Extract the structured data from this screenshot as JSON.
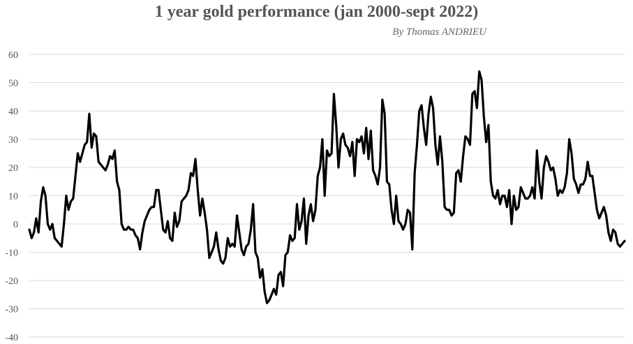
{
  "chart_data": {
    "type": "line",
    "title": "1 year gold performance (jan 2000-sept 2022)",
    "subtitle": "By Thomas ANDRIEU",
    "xlabel": "",
    "ylabel": "",
    "ylim": [
      -40,
      60
    ],
    "yticks": [
      60,
      50,
      40,
      30,
      20,
      10,
      0,
      -10,
      -20,
      -30,
      -40
    ],
    "grid": true,
    "line_color": "#000000",
    "grid_color": "#d9d9d9",
    "series": [
      {
        "values": [
          -2,
          -5,
          -3,
          2,
          -3,
          8,
          13,
          10,
          0,
          -2,
          0,
          -5,
          -6,
          -7,
          -8,
          0,
          10,
          5,
          8,
          9,
          17,
          25,
          22,
          25,
          28,
          29,
          39,
          27,
          32,
          31,
          22,
          21,
          20,
          19,
          21,
          24,
          23,
          26,
          15,
          12,
          0,
          -2,
          -2,
          -1,
          -2,
          -2,
          -4,
          -5,
          -9,
          -3,
          1,
          3,
          5,
          6,
          6,
          12,
          12,
          5,
          -2,
          -3,
          1,
          -5,
          -6,
          4,
          -1,
          1,
          8,
          9,
          10,
          12,
          18,
          17,
          23,
          12,
          3,
          9,
          4,
          -2,
          -12,
          -10,
          -8,
          -3,
          -9,
          -13,
          -14,
          -12,
          -5,
          -8,
          -7,
          -8,
          3,
          -3,
          -9,
          -11,
          -8,
          -7,
          -2,
          7,
          -10,
          -12,
          -19,
          -16,
          -24,
          -28,
          -27,
          -25,
          -23,
          -25,
          -18,
          -17,
          -22,
          -11,
          -10,
          -4,
          -6,
          -5,
          7,
          -2,
          1,
          9,
          -7,
          3,
          7,
          1,
          5,
          17,
          20,
          30,
          10,
          26,
          24,
          25,
          46,
          35,
          20,
          30,
          32,
          28,
          27,
          24,
          29,
          17,
          30,
          29,
          31,
          25,
          34,
          23,
          33,
          19,
          17,
          14,
          20,
          44,
          39,
          15,
          14,
          5,
          0,
          10,
          1,
          0,
          -2,
          0,
          5,
          4,
          -9,
          18,
          28,
          40,
          42,
          34,
          28,
          39,
          45,
          41,
          28,
          21,
          31,
          22,
          6,
          5,
          5,
          3,
          4,
          18,
          19,
          15,
          24,
          31,
          30,
          28,
          46,
          47,
          41,
          54,
          51,
          38,
          29,
          35,
          15,
          10,
          9,
          12,
          7,
          10,
          10,
          6,
          12,
          0,
          10,
          5,
          6,
          13,
          11,
          9,
          9,
          10,
          13,
          9,
          26,
          15,
          9,
          20,
          24,
          22,
          19,
          20,
          16,
          10,
          12,
          11,
          13,
          18,
          30,
          25,
          16,
          14,
          11,
          14,
          14,
          16,
          22,
          17,
          17,
          11,
          5,
          2,
          4,
          6,
          3,
          -3,
          -6,
          -2,
          -3,
          -7,
          -8,
          -7,
          -6
        ]
      }
    ]
  }
}
